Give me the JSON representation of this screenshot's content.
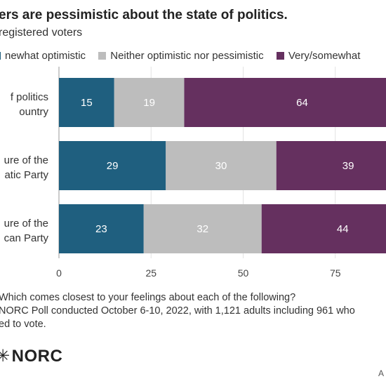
{
  "title": "ers are pessimistic about the state of politics.",
  "subtitle": " registered voters",
  "legend": [
    {
      "label": "newhat optimistic",
      "color": "#1f5f7f"
    },
    {
      "label": "Neither optimistic nor pessimistic",
      "color": "#bdbdbd"
    },
    {
      "label": "Very/somewhat",
      "color": "#65305f"
    }
  ],
  "chart_data": {
    "type": "bar",
    "orientation": "horizontal",
    "stacked": true,
    "categories": [
      [
        "f politics",
        "ountry"
      ],
      [
        "ure of the",
        "atic Party"
      ],
      [
        "ure of the",
        "can Party"
      ]
    ],
    "series": [
      {
        "name": "newhat optimistic",
        "color": "#1f5f7f",
        "values": [
          15,
          29,
          23
        ]
      },
      {
        "name": "Neither optimistic nor pessimistic",
        "color": "#bdbdbd",
        "values": [
          19,
          30,
          32
        ]
      },
      {
        "name": "Very/somewhat",
        "color": "#65305f",
        "values": [
          64,
          39,
          44
        ]
      }
    ],
    "xticks": [
      0,
      25,
      50,
      75
    ],
    "xlim": [
      0,
      100
    ],
    "grid": true
  },
  "footer": {
    "question": "Which comes closest to your feelings about each of the following?",
    "source_line1": "NORC Poll conducted October 6-10, 2022, with 1,121 adults including 961 who",
    "source_line2": "ed to vote."
  },
  "logo_text": "NORC",
  "corner_text": "A"
}
